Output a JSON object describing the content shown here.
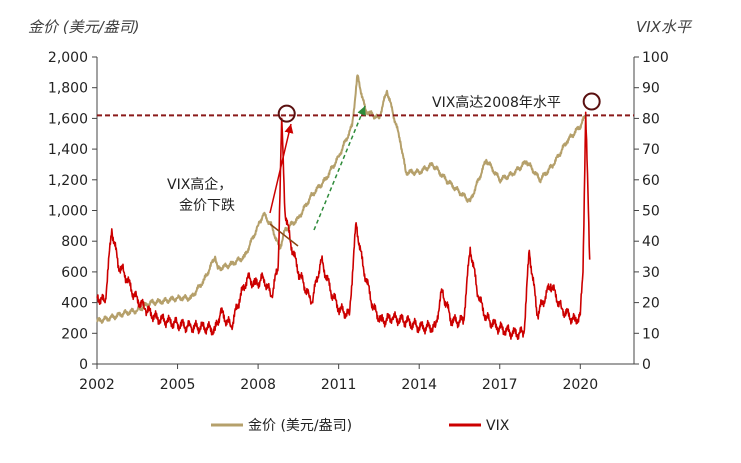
{
  "chart_data": {
    "type": "line",
    "y_left_title": "金价 (美元/盎司)",
    "y_right_title": "VIX水平",
    "x_ticks": [
      2002,
      2005,
      2008,
      2011,
      2014,
      2017,
      2020
    ],
    "xlim": [
      2002,
      2022
    ],
    "y_left_ticks": [
      "0",
      "200",
      "400",
      "600",
      "800",
      "1,000",
      "1,200",
      "1,400",
      "1,600",
      "1,800",
      "2,000"
    ],
    "ylim_left": [
      0,
      2000
    ],
    "y_right_ticks": [
      "0",
      "10",
      "20",
      "30",
      "40",
      "50",
      "60",
      "70",
      "80",
      "90",
      "100"
    ],
    "ylim_right": [
      0,
      100
    ],
    "reference_line": {
      "value_right": 81,
      "color": "#8B1A1A",
      "style": "dashed"
    },
    "annotations": {
      "vix_high_2008_line1": "VIX高企，",
      "vix_high_2008_line2": "金价下跌",
      "vix_2020": "VIX高达2008年水平"
    },
    "annotation_points": {
      "vix_2008_peak": {
        "x": 2008.88,
        "y_right": 80.9
      },
      "vix_2020_peak": {
        "x": 2020.2,
        "y_right": 85.5
      }
    },
    "series": [
      {
        "name": "金价 (美元/盎司)",
        "axis": "left",
        "color": "#B5A06B",
        "x": [
          2002.0,
          2002.5,
          2003.0,
          2003.5,
          2004.0,
          2004.5,
          2005.0,
          2005.5,
          2006.0,
          2006.4,
          2006.5,
          2007.0,
          2007.5,
          2008.0,
          2008.2,
          2008.5,
          2008.8,
          2009.0,
          2009.5,
          2010.0,
          2010.5,
          2011.0,
          2011.5,
          2011.7,
          2012.0,
          2012.5,
          2012.8,
          2013.0,
          2013.3,
          2013.5,
          2014.0,
          2014.5,
          2015.0,
          2015.5,
          2015.9,
          2016.5,
          2017.0,
          2017.5,
          2018.0,
          2018.5,
          2019.0,
          2019.5,
          2020.0,
          2020.2
        ],
        "y": [
          280,
          300,
          330,
          350,
          400,
          410,
          430,
          430,
          550,
          700,
          620,
          650,
          700,
          900,
          980,
          900,
          750,
          870,
          950,
          1100,
          1200,
          1350,
          1550,
          1880,
          1650,
          1600,
          1780,
          1650,
          1450,
          1250,
          1250,
          1300,
          1200,
          1120,
          1060,
          1330,
          1200,
          1240,
          1320,
          1200,
          1300,
          1450,
          1550,
          1620
        ]
      },
      {
        "name": "VIX",
        "axis": "right",
        "color": "#CC0000",
        "x": [
          2002.0,
          2002.3,
          2002.55,
          2002.8,
          2003.0,
          2003.4,
          2003.8,
          2004.2,
          2004.6,
          2005.0,
          2005.5,
          2006.0,
          2006.4,
          2006.6,
          2007.0,
          2007.3,
          2007.6,
          2007.9,
          2008.2,
          2008.5,
          2008.75,
          2008.88,
          2009.0,
          2009.2,
          2009.5,
          2009.9,
          2010.0,
          2010.35,
          2010.7,
          2011.0,
          2011.4,
          2011.65,
          2011.9,
          2012.3,
          2012.6,
          2013.0,
          2013.5,
          2014.0,
          2014.6,
          2014.85,
          2015.2,
          2015.65,
          2015.9,
          2016.2,
          2016.5,
          2016.9,
          2017.5,
          2017.9,
          2018.1,
          2018.4,
          2018.9,
          2019.3,
          2019.8,
          2020.0,
          2020.1,
          2020.2,
          2020.35
        ],
        "y": [
          22,
          20,
          44,
          32,
          30,
          22,
          18,
          15,
          14,
          13,
          12,
          12,
          11,
          17,
          12,
          21,
          28,
          26,
          28,
          22,
          32,
          80,
          50,
          40,
          30,
          22,
          20,
          34,
          24,
          18,
          16,
          46,
          32,
          18,
          14,
          15,
          14,
          12,
          12,
          24,
          14,
          14,
          38,
          22,
          15,
          12,
          10,
          10,
          37,
          16,
          26,
          18,
          14,
          16,
          30,
          82,
          34
        ]
      }
    ]
  },
  "legend": {
    "gold_label": "金价 (美元/盎司)",
    "vix_label": "VIX"
  }
}
